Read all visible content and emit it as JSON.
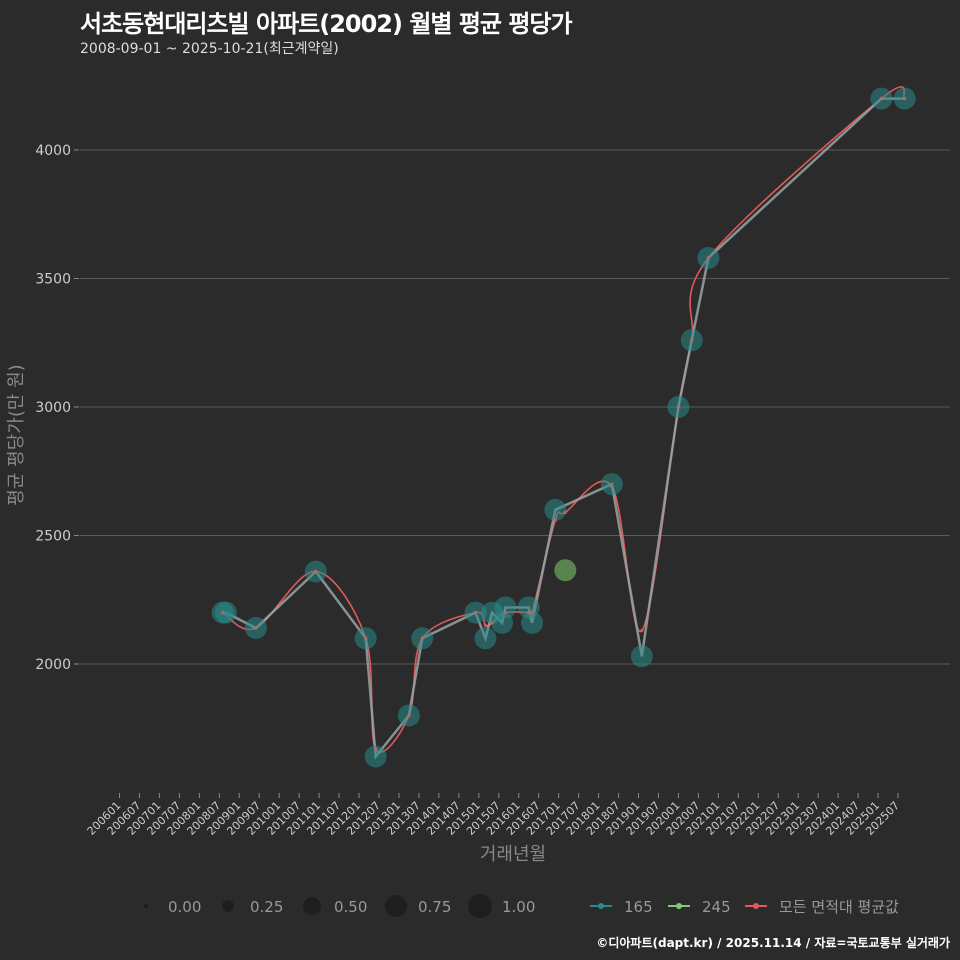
{
  "title": "서초동현대리츠빌 아파트(2002) 월별 평균 평당가",
  "subtitle": "2008-09-01 ~ 2025-10-21(최근계약일)",
  "caption": "©디아파트(dapt.kr) / 2025.11.14 / 자료=국토교통부 실거래가",
  "chart_data": {
    "type": "scatter",
    "xlabel": "거래년월",
    "ylabel": "평균 평당가(만 원)",
    "ylim": [
      1500,
      4300
    ],
    "yticks": [
      2000,
      2500,
      3000,
      3500,
      4000
    ],
    "xticks": [
      "200601",
      "200607",
      "200701",
      "200707",
      "200801",
      "200807",
      "200901",
      "200907",
      "201001",
      "201007",
      "201101",
      "201107",
      "201201",
      "201207",
      "201301",
      "201307",
      "201401",
      "201407",
      "201501",
      "201507",
      "201601",
      "201607",
      "201701",
      "201707",
      "201801",
      "201807",
      "201901",
      "201907",
      "202001",
      "202007",
      "202101",
      "202107",
      "202201",
      "202207",
      "202301",
      "202307",
      "202401",
      "202407",
      "202501",
      "202507"
    ],
    "grid": true,
    "legend_size": {
      "title": "",
      "entries": [
        "0.00",
        "0.25",
        "0.50",
        "0.75",
        "1.00"
      ]
    },
    "legend_series": [
      "165",
      "245",
      "모든 면적대 평균값"
    ],
    "colors": {
      "165": "#2a8a8a",
      "245": "#7ccf6a",
      "avg": "#e05a5a",
      "line165": "#9aa5a5"
    },
    "series": [
      {
        "name": "165",
        "points": [
          [
            "2008-08",
            2200
          ],
          [
            "2008-09",
            2200
          ],
          [
            "2009-06",
            2140
          ],
          [
            "2010-12",
            2360
          ],
          [
            "2012-03",
            2100
          ],
          [
            "2012-06",
            1640
          ],
          [
            "2013-04",
            1800
          ],
          [
            "2013-08",
            2100
          ],
          [
            "2014-12",
            2200
          ],
          [
            "2015-03",
            2100
          ],
          [
            "2015-05",
            2200
          ],
          [
            "2015-08",
            2160
          ],
          [
            "2015-09",
            2220
          ],
          [
            "2016-04",
            2220
          ],
          [
            "2016-05",
            2160
          ],
          [
            "2016-12",
            2600
          ],
          [
            "2018-05",
            2700
          ],
          [
            "2019-02",
            2030
          ],
          [
            "2020-01",
            3000
          ],
          [
            "2020-05",
            3260
          ],
          [
            "2020-10",
            3580
          ],
          [
            "2025-02",
            4200
          ],
          [
            "2025-09",
            4200
          ]
        ]
      },
      {
        "name": "245",
        "points": [
          [
            "2017-03",
            2365
          ]
        ]
      },
      {
        "name": "모든 면적대 평균값",
        "points": [
          [
            "2008-08",
            2200
          ],
          [
            "2009-06",
            2140
          ],
          [
            "2010-12",
            2360
          ],
          [
            "2012-03",
            2100
          ],
          [
            "2012-06",
            1670
          ],
          [
            "2013-04",
            1800
          ],
          [
            "2013-08",
            2100
          ],
          [
            "2014-12",
            2200
          ],
          [
            "2015-03",
            2150
          ],
          [
            "2015-05",
            2160
          ],
          [
            "2015-09",
            2200
          ],
          [
            "2016-04",
            2200
          ],
          [
            "2016-05",
            2200
          ],
          [
            "2016-12",
            2560
          ],
          [
            "2017-03",
            2590
          ],
          [
            "2018-05",
            2690
          ],
          [
            "2019-02",
            2130
          ],
          [
            "2020-01",
            3000
          ],
          [
            "2020-05",
            3260
          ],
          [
            "2020-10",
            3580
          ],
          [
            "2025-02",
            4200
          ],
          [
            "2025-09",
            4200
          ]
        ]
      }
    ]
  }
}
